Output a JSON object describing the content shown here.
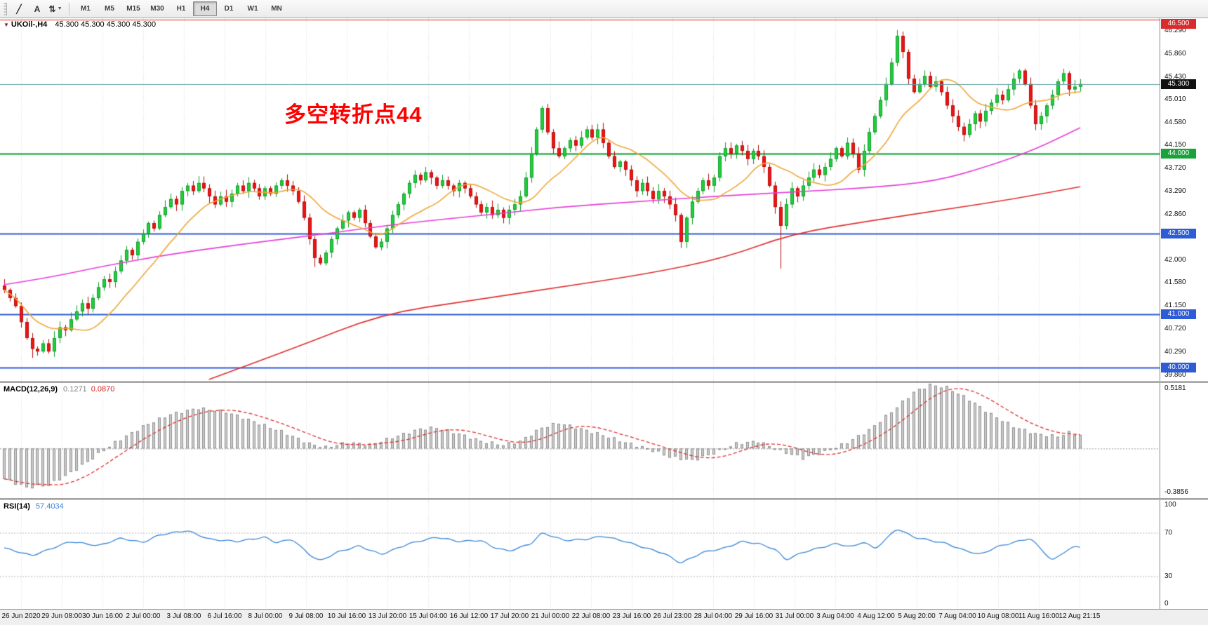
{
  "toolbar": {
    "tool_buttons": [
      {
        "id": "line-studies-tool",
        "glyph": "╱",
        "caret": false
      },
      {
        "id": "text-label-tool",
        "glyph": "A",
        "caret": false
      },
      {
        "id": "arrows-tool",
        "glyph": "⇅",
        "caret": true
      }
    ],
    "timeframes": [
      "M1",
      "M5",
      "M15",
      "M30",
      "H1",
      "H4",
      "D1",
      "W1",
      "MN"
    ],
    "active_timeframe": "H4"
  },
  "chart": {
    "header": {
      "marker": "▼",
      "symbol": "UKOil-,H4",
      "ohlc": "45.300 45.300 45.300 45.300"
    },
    "annotation": {
      "text": "多空转折点44",
      "color": "#ff0000"
    },
    "price_axis": {
      "ticks": [
        "46.290",
        "45.860",
        "45.430",
        "45.010",
        "44.580",
        "44.150",
        "43.720",
        "43.290",
        "42.860",
        "42.000",
        "41.580",
        "41.150",
        "40.720",
        "40.290",
        "39.860"
      ]
    },
    "hlines": [
      {
        "price": 46.5,
        "color": "#e03131",
        "width": 1,
        "badge": "46.500",
        "badge_bg": "#d92b2b",
        "on_top": false
      },
      {
        "price": 45.3,
        "color": "#5f9ea0",
        "width": 1,
        "badge": "45.300",
        "badge_bg": "#111111",
        "on_top": true
      },
      {
        "price": 44.0,
        "color": "#00a22a",
        "width": 2,
        "badge": "44.000",
        "badge_bg": "#18a23a",
        "on_top": false
      },
      {
        "price": 42.5,
        "color": "#2e5cd6",
        "width": 2,
        "badge": "42.500",
        "badge_bg": "#2e5cd6",
        "on_top": false
      },
      {
        "price": 41.0,
        "color": "#2e5cd6",
        "width": 2,
        "badge": "41.000",
        "badge_bg": "#2e5cd6",
        "on_top": false
      },
      {
        "price": 40.0,
        "color": "#2e5cd6",
        "width": 2,
        "badge": "40.000",
        "badge_bg": "#2e5cd6",
        "on_top": false
      }
    ],
    "colors": {
      "candle_up": "#21cf3c",
      "candle_up_border": "#119e2b",
      "candle_down": "#ee1414",
      "candle_down_border": "#b80d0d",
      "ma_red": "#e03030",
      "ma_magenta": "#e640d8",
      "ma_orange": "#efa83a",
      "macd_bar_fill": "#cdcdcd",
      "macd_bar_border": "#8f8f8f",
      "macd_signal": "#e03030",
      "rsi_line": "#3a86d6",
      "grid": "#dadada",
      "level_line": "#b8b8b8"
    }
  },
  "chart_data": {
    "type": "candlestick",
    "symbol": "UKOil-",
    "timeframe": "H4",
    "price_range": [
      39.75,
      46.53
    ],
    "x_labels": [
      "26 Jun 2020",
      "29 Jun 08:00",
      "30 Jun 16:00",
      "2 Jul 00:00",
      "3 Jul 08:00",
      "6 Jul 16:00",
      "8 Jul 00:00",
      "9 Jul 08:00",
      "10 Jul 16:00",
      "13 Jul 20:00",
      "15 Jul 04:00",
      "16 Jul 12:00",
      "17 Jul 20:00",
      "21 Jul 00:00",
      "22 Jul 08:00",
      "23 Jul 16:00",
      "26 Jul 23:00",
      "28 Jul 04:00",
      "29 Jul 16:00",
      "31 Jul 00:00",
      "3 Aug 04:00",
      "4 Aug 12:00",
      "5 Aug 20:00",
      "7 Aug 04:00",
      "10 Aug 08:00",
      "11 Aug 16:00",
      "12 Aug 21:15"
    ],
    "closes": [
      41.45,
      41.3,
      41.15,
      40.85,
      40.55,
      40.35,
      40.3,
      40.45,
      40.3,
      40.55,
      40.75,
      40.7,
      40.9,
      41.05,
      41.2,
      41.1,
      41.3,
      41.5,
      41.65,
      41.6,
      41.8,
      42.0,
      42.2,
      42.1,
      42.35,
      42.5,
      42.7,
      42.6,
      42.85,
      43.0,
      43.15,
      43.05,
      43.3,
      43.4,
      43.3,
      43.45,
      43.35,
      43.2,
      43.05,
      43.2,
      43.1,
      43.25,
      43.4,
      43.3,
      43.45,
      43.35,
      43.2,
      43.35,
      43.25,
      43.4,
      43.5,
      43.4,
      43.3,
      43.1,
      42.8,
      42.4,
      42.05,
      41.95,
      42.15,
      42.4,
      42.6,
      42.75,
      42.9,
      42.8,
      42.95,
      42.7,
      42.45,
      42.25,
      42.35,
      42.6,
      42.85,
      43.05,
      43.25,
      43.45,
      43.6,
      43.5,
      43.65,
      43.55,
      43.4,
      43.5,
      43.4,
      43.3,
      43.45,
      43.35,
      43.2,
      43.05,
      42.9,
      43.0,
      42.85,
      42.95,
      42.8,
      42.95,
      43.05,
      43.2,
      43.55,
      44.0,
      44.45,
      44.85,
      44.4,
      44.1,
      43.95,
      44.1,
      44.25,
      44.15,
      44.3,
      44.45,
      44.3,
      44.45,
      44.2,
      43.95,
      43.75,
      43.85,
      43.7,
      43.5,
      43.3,
      43.45,
      43.3,
      43.15,
      43.3,
      43.2,
      43.05,
      42.85,
      42.35,
      42.8,
      43.1,
      43.3,
      43.5,
      43.4,
      43.55,
      43.95,
      44.1,
      44.0,
      44.15,
      44.05,
      43.9,
      44.05,
      43.95,
      43.75,
      43.4,
      43.0,
      42.65,
      43.05,
      43.35,
      43.2,
      43.4,
      43.55,
      43.7,
      43.6,
      43.75,
      43.9,
      44.1,
      43.95,
      44.2,
      44.0,
      43.7,
      44.05,
      44.4,
      44.7,
      45.0,
      45.3,
      45.7,
      46.2,
      45.9,
      45.4,
      45.15,
      45.3,
      45.45,
      45.25,
      45.35,
      45.15,
      44.9,
      44.7,
      44.5,
      44.35,
      44.55,
      44.75,
      44.6,
      44.8,
      44.95,
      45.1,
      45.0,
      45.2,
      45.4,
      45.55,
      45.3,
      44.9,
      44.55,
      44.7,
      44.9,
      45.1,
      45.35,
      45.5,
      45.2,
      45.25,
      45.3
    ],
    "wick_overrides": {
      "5": {
        "low": 40.18
      },
      "56": {
        "low": 41.88
      },
      "140": {
        "low": 41.85
      },
      "161": {
        "high": 46.31
      }
    },
    "ma_red_anchors": [
      [
        37,
        39.78
      ],
      [
        52,
        40.35
      ],
      [
        68,
        41.0
      ],
      [
        84,
        41.25
      ],
      [
        100,
        41.5
      ],
      [
        116,
        41.75
      ],
      [
        130,
        42.05
      ],
      [
        142,
        42.5
      ],
      [
        156,
        42.74
      ],
      [
        170,
        42.96
      ],
      [
        182,
        43.15
      ],
      [
        194,
        43.38
      ]
    ],
    "ma_magenta_anchors": [
      [
        0,
        41.55
      ],
      [
        8,
        41.68
      ],
      [
        18,
        41.9
      ],
      [
        30,
        42.12
      ],
      [
        44,
        42.32
      ],
      [
        58,
        42.5
      ],
      [
        72,
        42.7
      ],
      [
        86,
        42.84
      ],
      [
        100,
        43.0
      ],
      [
        114,
        43.1
      ],
      [
        128,
        43.2
      ],
      [
        142,
        43.28
      ],
      [
        156,
        43.36
      ],
      [
        168,
        43.48
      ],
      [
        178,
        43.78
      ],
      [
        186,
        44.08
      ],
      [
        194,
        44.48
      ]
    ],
    "orange_ma_period": 13,
    "macd_anchors": [
      [
        0,
        -0.25
      ],
      [
        4,
        -0.32
      ],
      [
        8,
        -0.3
      ],
      [
        12,
        -0.2
      ],
      [
        16,
        -0.08
      ],
      [
        20,
        0.05
      ],
      [
        25,
        0.18
      ],
      [
        30,
        0.28
      ],
      [
        35,
        0.33
      ],
      [
        40,
        0.3
      ],
      [
        45,
        0.22
      ],
      [
        50,
        0.14
      ],
      [
        55,
        0.04
      ],
      [
        58,
        0.01
      ],
      [
        62,
        0.05
      ],
      [
        66,
        0.03
      ],
      [
        70,
        0.09
      ],
      [
        75,
        0.16
      ],
      [
        78,
        0.17
      ],
      [
        82,
        0.12
      ],
      [
        86,
        0.06
      ],
      [
        90,
        0.03
      ],
      [
        93,
        0.06
      ],
      [
        97,
        0.17
      ],
      [
        100,
        0.21
      ],
      [
        104,
        0.16
      ],
      [
        108,
        0.11
      ],
      [
        112,
        0.05
      ],
      [
        116,
        0.0
      ],
      [
        120,
        -0.07
      ],
      [
        124,
        -0.1
      ],
      [
        128,
        -0.04
      ],
      [
        132,
        0.04
      ],
      [
        136,
        0.06
      ],
      [
        140,
        -0.02
      ],
      [
        144,
        -0.08
      ],
      [
        148,
        -0.03
      ],
      [
        152,
        0.05
      ],
      [
        156,
        0.15
      ],
      [
        160,
        0.3
      ],
      [
        164,
        0.46
      ],
      [
        167,
        0.52
      ],
      [
        170,
        0.5
      ],
      [
        174,
        0.4
      ],
      [
        178,
        0.28
      ],
      [
        182,
        0.18
      ],
      [
        186,
        0.12
      ],
      [
        190,
        0.1
      ],
      [
        192,
        0.13
      ],
      [
        194,
        0.11
      ]
    ],
    "rsi_anchors": [
      [
        0,
        56
      ],
      [
        5,
        49
      ],
      [
        12,
        62
      ],
      [
        17,
        58
      ],
      [
        21,
        65
      ],
      [
        25,
        61
      ],
      [
        28,
        68
      ],
      [
        33,
        72
      ],
      [
        37,
        64
      ],
      [
        42,
        62
      ],
      [
        47,
        66
      ],
      [
        49,
        61
      ],
      [
        52,
        64
      ],
      [
        55,
        50
      ],
      [
        57,
        44
      ],
      [
        60,
        52
      ],
      [
        64,
        58
      ],
      [
        68,
        50
      ],
      [
        73,
        60
      ],
      [
        78,
        66
      ],
      [
        82,
        62
      ],
      [
        86,
        63
      ],
      [
        88,
        57
      ],
      [
        91,
        53
      ],
      [
        95,
        60
      ],
      [
        97,
        70
      ],
      [
        101,
        63
      ],
      [
        105,
        64
      ],
      [
        108,
        67
      ],
      [
        112,
        62
      ],
      [
        115,
        57
      ],
      [
        119,
        51
      ],
      [
        122,
        42
      ],
      [
        126,
        52
      ],
      [
        130,
        56
      ],
      [
        133,
        62
      ],
      [
        136,
        60
      ],
      [
        139,
        55
      ],
      [
        141,
        45
      ],
      [
        144,
        52
      ],
      [
        147,
        56
      ],
      [
        150,
        60
      ],
      [
        153,
        57
      ],
      [
        155,
        62
      ],
      [
        157,
        55
      ],
      [
        159,
        64
      ],
      [
        161,
        74
      ],
      [
        164,
        66
      ],
      [
        167,
        63
      ],
      [
        170,
        60
      ],
      [
        173,
        54
      ],
      [
        176,
        50
      ],
      [
        179,
        57
      ],
      [
        182,
        61
      ],
      [
        185,
        65
      ],
      [
        187,
        55
      ],
      [
        189,
        44
      ],
      [
        191,
        52
      ],
      [
        193,
        57
      ],
      [
        194,
        57.4
      ]
    ],
    "indicators": {
      "macd": {
        "label": "MACD(12,26,9)",
        "value_main": "0.1271",
        "value_signal": "0.0870",
        "scale_top": "0.5181",
        "scale_bottom": "-0.3856"
      },
      "rsi": {
        "label": "RSI(14)",
        "value": "57.4034",
        "scale": [
          "100",
          "70",
          "30",
          "0"
        ],
        "levels": [
          70,
          30
        ]
      }
    }
  }
}
